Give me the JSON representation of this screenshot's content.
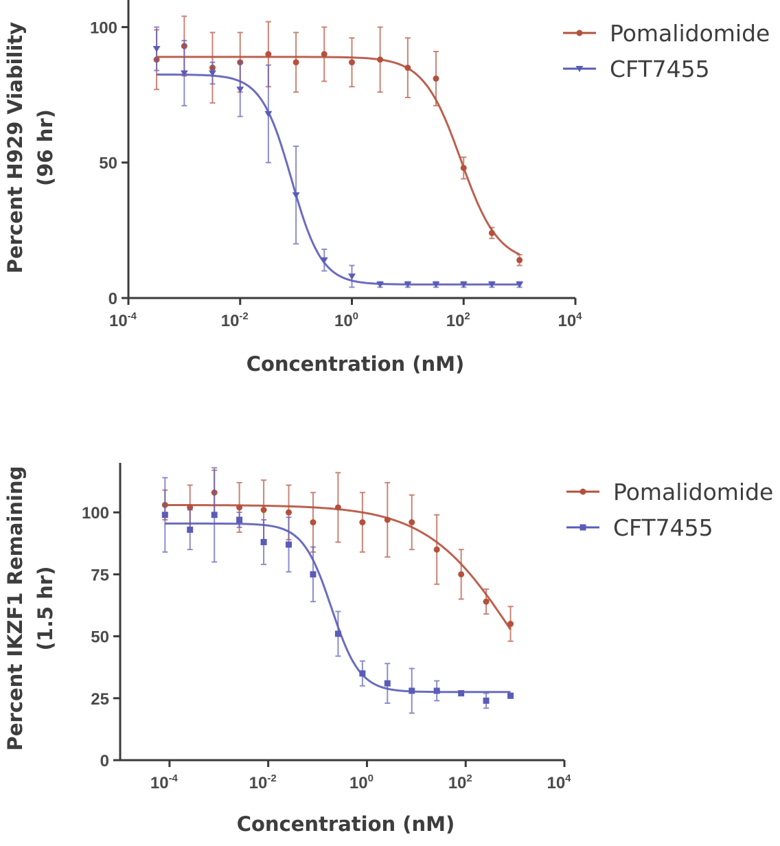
{
  "chart_data": [
    {
      "type": "scatter",
      "xscale": "log",
      "xlabel": "Concentration (nM)",
      "ylabel": [
        "Percent H929 Viability",
        "(96 hr)"
      ],
      "xlim": [
        0.0001,
        10000
      ],
      "ylim": [
        0,
        110
      ],
      "xticks": [
        {
          "base": "10",
          "exp": "-4",
          "value": 0.0001
        },
        {
          "base": "10",
          "exp": "-2",
          "value": 0.01
        },
        {
          "base": "10",
          "exp": "0",
          "value": 1
        },
        {
          "base": "10",
          "exp": "2",
          "value": 100
        },
        {
          "base": "10",
          "exp": "4",
          "value": 10000
        }
      ],
      "yticks": [
        {
          "label": "0",
          "value": 0
        },
        {
          "label": "50",
          "value": 50
        },
        {
          "label": "100",
          "value": 100
        }
      ],
      "grid": false,
      "legend_placement": "right-top",
      "series": [
        {
          "name": "Pomalidomide",
          "color": "#b4503c",
          "marker": "circle",
          "x": [
            0.00032,
            0.001,
            0.0032,
            0.01,
            0.032,
            0.1,
            0.32,
            1,
            3.2,
            10,
            32,
            100,
            320,
            1000
          ],
          "y": [
            88,
            93,
            85,
            87,
            90,
            87,
            90,
            87,
            88,
            85,
            81,
            48,
            24,
            14
          ],
          "err": [
            11,
            11,
            13,
            11,
            12,
            11,
            10,
            9,
            12,
            11,
            10,
            4,
            2,
            2
          ],
          "fit": {
            "top": 89,
            "bottom": 13,
            "log_ic50": 1.95,
            "hill": 1.3
          }
        },
        {
          "name": "CFT7455",
          "color": "#5a5cb8",
          "marker": "triangle-down",
          "x": [
            0.00032,
            0.001,
            0.0032,
            0.01,
            0.032,
            0.1,
            0.32,
            1,
            3.2,
            10,
            32,
            100,
            320,
            1000
          ],
          "y": [
            92,
            83,
            83,
            77,
            68,
            38,
            14,
            8,
            5,
            5,
            5,
            5,
            5,
            5
          ],
          "err": [
            8,
            12,
            4,
            10,
            18,
            18,
            4,
            4,
            1,
            1,
            1,
            1,
            1,
            1
          ],
          "fit": {
            "top": 82.5,
            "bottom": 5,
            "log_ic50": -1.08,
            "hill": 1.6
          }
        }
      ]
    },
    {
      "type": "scatter",
      "xscale": "log",
      "xlabel": "Concentration (nM)",
      "ylabel": [
        "Percent IKZF1 Remaining",
        "(1.5 hr)"
      ],
      "xlim": [
        1e-05,
        10000
      ],
      "ylim": [
        0,
        120
      ],
      "xticks": [
        {
          "base": "10",
          "exp": "-4",
          "value": 0.0001
        },
        {
          "base": "10",
          "exp": "-2",
          "value": 0.01
        },
        {
          "base": "10",
          "exp": "0",
          "value": 1
        },
        {
          "base": "10",
          "exp": "2",
          "value": 100
        },
        {
          "base": "10",
          "exp": "4",
          "value": 10000
        }
      ],
      "yticks": [
        {
          "label": "0",
          "value": 0
        },
        {
          "label": "25",
          "value": 25
        },
        {
          "label": "50",
          "value": 50
        },
        {
          "label": "75",
          "value": 75
        },
        {
          "label": "100",
          "value": 100
        }
      ],
      "grid": false,
      "legend_placement": "right-top",
      "series": [
        {
          "name": "Pomalidomide",
          "color": "#b4503c",
          "marker": "circle",
          "x": [
            8.1e-05,
            0.00026,
            0.00081,
            0.0026,
            0.0081,
            0.026,
            0.081,
            0.26,
            0.81,
            2.6,
            8.1,
            26,
            81,
            260,
            810
          ],
          "y": [
            103,
            102,
            108,
            102,
            101,
            100,
            96,
            102,
            96,
            97,
            96,
            85,
            75,
            64,
            55
          ],
          "err": [
            6,
            9,
            9,
            10,
            12,
            11,
            12,
            14,
            12,
            15,
            11,
            14,
            10,
            5,
            7
          ],
          "fit": {
            "top": 103,
            "bottom": 0,
            "log_ic50": 2.95,
            "hill": 0.5
          }
        },
        {
          "name": "CFT7455",
          "color": "#5a5cb8",
          "marker": "square",
          "x": [
            8.1e-05,
            0.00026,
            0.00081,
            0.0026,
            0.0081,
            0.026,
            0.081,
            0.26,
            0.81,
            2.6,
            8.1,
            26,
            81,
            260,
            810
          ],
          "y": [
            99,
            93,
            99,
            97,
            88,
            87,
            75,
            51,
            35,
            31,
            28,
            28,
            27,
            24,
            26
          ],
          "err": [
            15,
            8,
            19,
            3,
            9,
            11,
            11,
            9,
            5,
            8,
            9,
            4,
            1,
            3,
            1
          ],
          "fit": {
            "top": 95.5,
            "bottom": 27.5,
            "log_ic50": -0.72,
            "hill": 1.5
          }
        }
      ]
    }
  ]
}
